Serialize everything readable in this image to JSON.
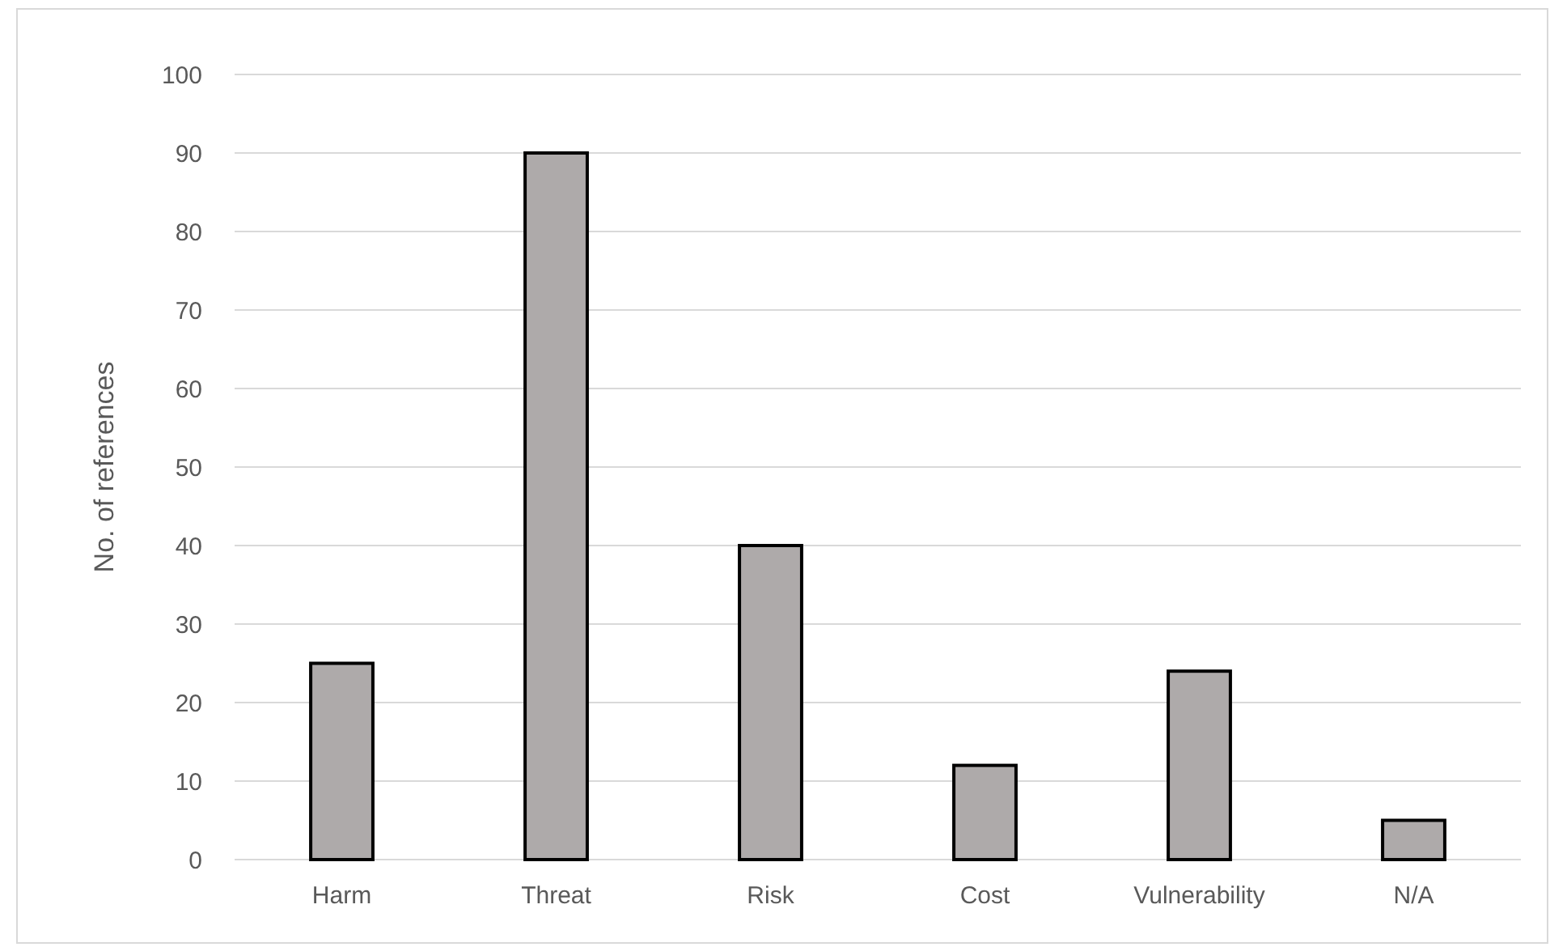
{
  "chart_data": {
    "type": "bar",
    "ylabel": "No. of references",
    "categories": [
      "Harm",
      "Threat",
      "Risk",
      "Cost",
      "Vulnerability",
      "N/A"
    ],
    "values": [
      25,
      90,
      40,
      12,
      24,
      5
    ],
    "color": "#aeaaaa",
    "ylim": [
      0,
      100
    ],
    "yticks": [
      0,
      10,
      20,
      30,
      40,
      50,
      60,
      70,
      80,
      90,
      100
    ],
    "grid": "y"
  }
}
